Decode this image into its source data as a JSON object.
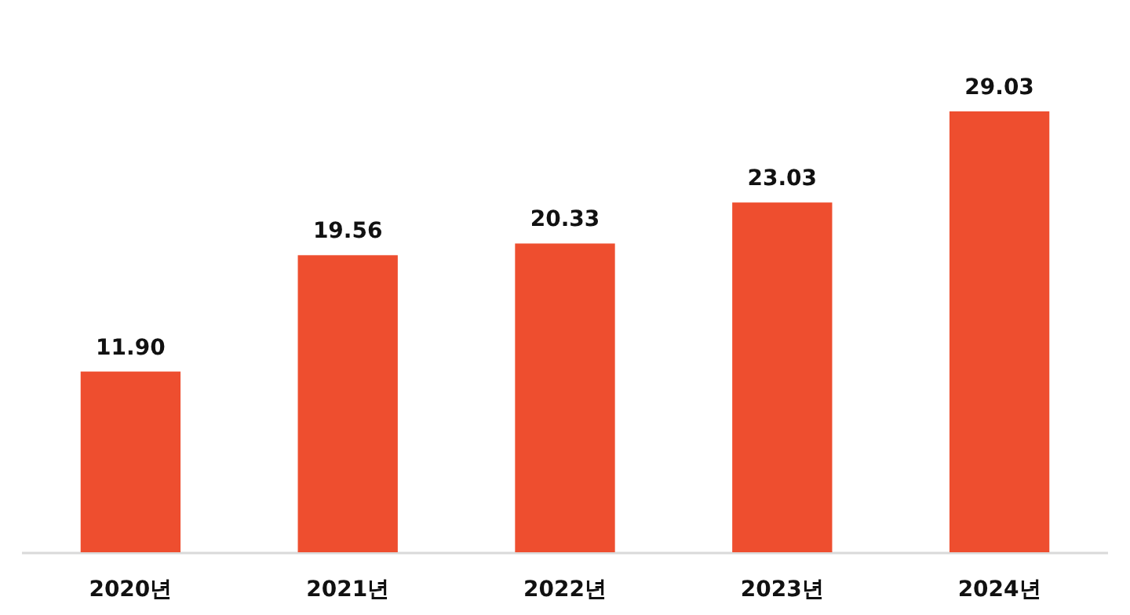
{
  "chart_data": {
    "type": "bar",
    "categories": [
      "2020년",
      "2021년",
      "2022년",
      "2023년",
      "2024년"
    ],
    "values": [
      11.9,
      19.56,
      20.33,
      23.03,
      29.03
    ],
    "value_labels": [
      "11.90",
      "19.56",
      "20.33",
      "23.03",
      "29.03"
    ],
    "color": "#ee4e2f"
  }
}
